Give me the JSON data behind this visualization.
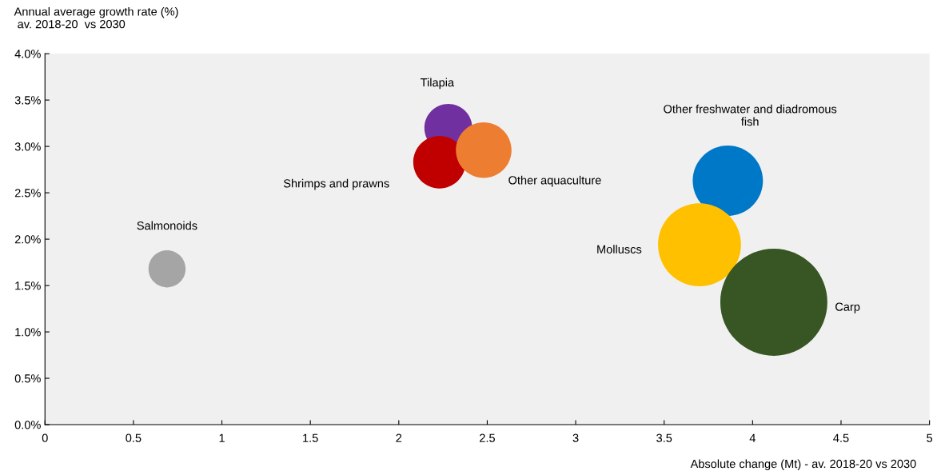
{
  "chart_data": {
    "type": "bubble",
    "ylabel": "Annual average growth rate (%)\n av. 2018-20  vs 2030",
    "xlabel": "Absolute change (Mt) - av. 2018-20 vs 2030",
    "xlim": [
      0,
      5
    ],
    "xticks": [
      0,
      0.5,
      1,
      1.5,
      2,
      2.5,
      3,
      3.5,
      4,
      4.5,
      5
    ],
    "ylim": [
      0,
      4
    ],
    "yticks": [
      {
        "value": 0,
        "label": "0.0%"
      },
      {
        "value": 0.5,
        "label": "0.5%"
      },
      {
        "value": 1,
        "label": "1.0%"
      },
      {
        "value": 1.5,
        "label": "1.5%"
      },
      {
        "value": 2,
        "label": "2.0%"
      },
      {
        "value": 2.5,
        "label": "2.5%"
      },
      {
        "value": 3,
        "label": "3.0%"
      },
      {
        "value": 3.5,
        "label": "3.5%"
      },
      {
        "value": 4,
        "label": "4.0%"
      }
    ],
    "grid": false,
    "legend": false,
    "series": [
      {
        "name": "Salmonoids",
        "color": "#a5a5a5",
        "x": [
          0.69
        ],
        "values": [
          1.68
        ],
        "sizes": [
          0.12
        ]
      },
      {
        "name": "Tilapia",
        "color": "#7030a0",
        "x": [
          2.28
        ],
        "values": [
          3.2
        ],
        "sizes": [
          0.2
        ]
      },
      {
        "name": "Shrimps and prawns",
        "color": "#c00000",
        "x": [
          2.23
        ],
        "values": [
          2.83
        ],
        "sizes": [
          0.24
        ]
      },
      {
        "name": "Other aquaculture",
        "color": "#ed7d31",
        "x": [
          2.48
        ],
        "values": [
          2.96
        ],
        "sizes": [
          0.27
        ]
      },
      {
        "name": "Other freshwater and diadromous\nfish",
        "color": "#0078c8",
        "x": [
          3.86
        ],
        "values": [
          2.63
        ],
        "sizes": [
          0.43
        ]
      },
      {
        "name": "Molluscs",
        "color": "#ffc000",
        "x": [
          3.7
        ],
        "values": [
          1.94
        ],
        "sizes": [
          0.6
        ]
      },
      {
        "name": "Carp",
        "color": "#375623",
        "x": [
          4.12
        ],
        "values": [
          1.32
        ],
        "sizes": [
          1
        ]
      }
    ]
  }
}
